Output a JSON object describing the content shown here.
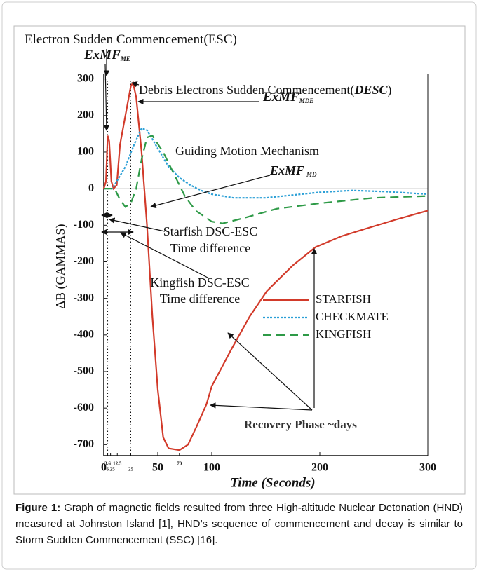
{
  "chart_data": {
    "type": "line",
    "annotations": [
      {
        "text": "Electron Sudden Commencement(ESC)"
      },
      {
        "text": "ExMF",
        "sub": "ME"
      },
      {
        "text": "Debris Electrons Sudden Commencement(",
        "bold": "DESC",
        "end": ")"
      },
      {
        "text": "ExMF",
        "sub": "MDE"
      },
      {
        "text": "Guiding Motion Mechanism"
      },
      {
        "text": "ExMF",
        "sub": "-MD"
      },
      {
        "text": "Starfish DSC-ESC"
      },
      {
        "text": "Time difference"
      },
      {
        "text": "Kingfish DSC-ESC"
      },
      {
        "text": "Time difference"
      },
      {
        "text": "Recovery Phase ~days"
      }
    ],
    "x_label": "Time (Seconds)",
    "y_label": "ΔB (GAMMAS)",
    "xlim": [
      0,
      300
    ],
    "ylim": [
      -730,
      305
    ],
    "xticks": [
      0,
      50,
      100,
      200,
      300
    ],
    "xticks_minor": [
      3.6,
      6.25,
      12.5,
      25,
      70
    ],
    "yticks": [
      300,
      200,
      100,
      0,
      -100,
      -200,
      -300,
      -400,
      -500,
      -600,
      -700
    ],
    "series": [
      {
        "name": "STARFISH",
        "color": "#d23a2a",
        "style": "solid",
        "x": [
          0,
          2,
          3.6,
          5,
          7,
          9,
          12,
          15,
          20,
          25,
          27,
          30,
          35,
          40,
          45,
          50,
          55,
          60,
          70,
          78,
          86,
          95,
          100,
          118,
          135,
          151,
          175,
          196,
          220,
          242,
          270,
          300
        ],
        "values": [
          0,
          20,
          145,
          130,
          20,
          0,
          10,
          120,
          200,
          280,
          290,
          250,
          100,
          -100,
          -350,
          -550,
          -680,
          -710,
          -715,
          -700,
          -650,
          -590,
          -540,
          -440,
          -350,
          -280,
          -210,
          -160,
          -130,
          -110,
          -85,
          -60
        ]
      },
      {
        "name": "CHECKMATE",
        "color": "#2a9fd6",
        "style": "dotted",
        "x": [
          0,
          8,
          12,
          20,
          28,
          35,
          40,
          50,
          60,
          70,
          80,
          90,
          100,
          120,
          150,
          200,
          230,
          260,
          300
        ],
        "values": [
          0,
          0,
          20,
          60,
          120,
          165,
          160,
          110,
          60,
          30,
          10,
          -5,
          -15,
          -25,
          -25,
          -10,
          -5,
          -8,
          -15
        ]
      },
      {
        "name": "KINGFISH",
        "color": "#2e9a47",
        "style": "dashed",
        "x": [
          0,
          10,
          15,
          20,
          25,
          30,
          35,
          40,
          45,
          55,
          65,
          75,
          85,
          100,
          110,
          130,
          160,
          200,
          250,
          300
        ],
        "values": [
          0,
          0,
          -30,
          -50,
          -40,
          0,
          80,
          140,
          145,
          100,
          40,
          -20,
          -60,
          -90,
          -95,
          -80,
          -55,
          -40,
          -25,
          -20
        ]
      }
    ]
  },
  "caption": {
    "label": "Figure 1:",
    "text": " Graph of magnetic fields resulted from three High-altitude Nuclear Detonation (HND) measured at Johnston Island [1], HND’s sequence of commencement and decay is similar to Storm Sudden Commencement (SSC) [16]."
  }
}
